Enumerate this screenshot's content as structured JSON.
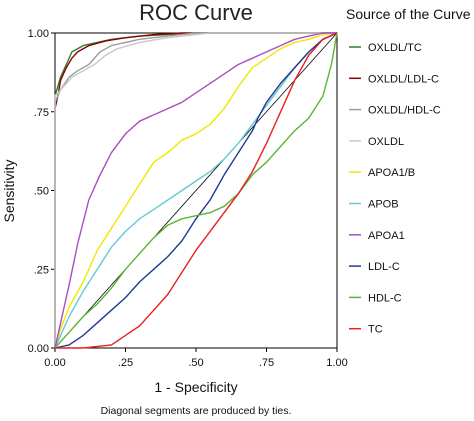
{
  "chart_data": {
    "type": "line",
    "title": "ROC Curve",
    "xlabel": "1 - Specificity",
    "ylabel": "Sensitivity",
    "xlim": [
      0,
      1
    ],
    "ylim": [
      0,
      1
    ],
    "xticks": [
      0,
      0.25,
      0.5,
      0.75,
      1.0
    ],
    "xtick_labels": [
      "0.00",
      ".25",
      ".50",
      ".75",
      "1.00"
    ],
    "yticks": [
      0,
      0.25,
      0.5,
      0.75,
      1.0
    ],
    "ytick_labels": [
      "0.00",
      ".25",
      ".50",
      ".75",
      "1.00"
    ],
    "grid": false,
    "legend_title": "Source of the Curve",
    "legend_position": "right",
    "footnote": "Diagonal segments are produced by ties.",
    "series": [
      {
        "name": "OXLDL/TC",
        "color": "#2e7d32",
        "x": [
          0,
          0,
          0.02,
          0.04,
          0.06,
          0.1,
          0.15,
          0.2,
          0.3,
          0.4,
          0.5,
          0.6,
          1.0
        ],
        "y": [
          0,
          0.8,
          0.86,
          0.9,
          0.94,
          0.96,
          0.97,
          0.98,
          0.99,
          0.995,
          1.0,
          1.0,
          1.0
        ]
      },
      {
        "name": "OXLDL/LDL-C",
        "color": "#8b0000",
        "x": [
          0,
          0,
          0.01,
          0.02,
          0.04,
          0.06,
          0.08,
          0.12,
          0.18,
          0.25,
          0.35,
          0.45,
          1.0
        ],
        "y": [
          0,
          0.76,
          0.8,
          0.85,
          0.89,
          0.92,
          0.94,
          0.96,
          0.975,
          0.985,
          0.995,
          1.0,
          1.0
        ]
      },
      {
        "name": "OXLDL/HDL-C",
        "color": "#9e9e9e",
        "x": [
          0,
          0,
          0.02,
          0.05,
          0.08,
          0.12,
          0.16,
          0.2,
          0.3,
          0.4,
          0.5,
          1.0
        ],
        "y": [
          0,
          0.78,
          0.82,
          0.86,
          0.88,
          0.9,
          0.94,
          0.96,
          0.98,
          0.99,
          1.0,
          1.0
        ]
      },
      {
        "name": "OXLDL",
        "color": "#c8c8c8",
        "x": [
          0,
          0,
          0.03,
          0.06,
          0.1,
          0.14,
          0.18,
          0.22,
          0.3,
          0.4,
          0.55,
          1.0
        ],
        "y": [
          0,
          0.8,
          0.83,
          0.86,
          0.88,
          0.9,
          0.93,
          0.95,
          0.97,
          0.985,
          1.0,
          1.0
        ]
      },
      {
        "name": "APOA1/B",
        "color": "#f2e600",
        "x": [
          0,
          0.02,
          0.05,
          0.1,
          0.15,
          0.2,
          0.25,
          0.3,
          0.35,
          0.4,
          0.45,
          0.5,
          0.55,
          0.6,
          0.65,
          0.7,
          0.75,
          0.8,
          0.85,
          0.9,
          0.95,
          1.0
        ],
        "y": [
          0,
          0.06,
          0.13,
          0.21,
          0.31,
          0.38,
          0.45,
          0.52,
          0.59,
          0.62,
          0.66,
          0.68,
          0.71,
          0.76,
          0.83,
          0.89,
          0.92,
          0.95,
          0.97,
          0.98,
          0.995,
          1.0
        ]
      },
      {
        "name": "APOB",
        "color": "#66c8d6",
        "x": [
          0,
          0.05,
          0.1,
          0.15,
          0.2,
          0.25,
          0.3,
          0.35,
          0.4,
          0.45,
          0.5,
          0.55,
          0.6,
          0.65,
          0.7,
          0.75,
          0.8,
          0.85,
          0.9,
          0.95,
          1.0
        ],
        "y": [
          0,
          0.1,
          0.18,
          0.25,
          0.32,
          0.37,
          0.41,
          0.44,
          0.47,
          0.5,
          0.53,
          0.56,
          0.6,
          0.65,
          0.71,
          0.77,
          0.83,
          0.89,
          0.94,
          0.98,
          1.0
        ]
      },
      {
        "name": "APOA1",
        "color": "#a54fc4",
        "x": [
          0,
          0.02,
          0.05,
          0.08,
          0.12,
          0.16,
          0.2,
          0.25,
          0.3,
          0.35,
          0.4,
          0.45,
          0.5,
          0.55,
          0.6,
          0.65,
          0.7,
          0.75,
          0.8,
          0.85,
          0.9,
          0.95,
          1.0
        ],
        "y": [
          0,
          0.08,
          0.2,
          0.33,
          0.47,
          0.55,
          0.62,
          0.68,
          0.72,
          0.74,
          0.76,
          0.78,
          0.81,
          0.84,
          0.87,
          0.9,
          0.92,
          0.94,
          0.96,
          0.98,
          0.99,
          1.0,
          1.0
        ]
      },
      {
        "name": "LDL-C",
        "color": "#1f3a93",
        "x": [
          0,
          0.05,
          0.1,
          0.15,
          0.2,
          0.25,
          0.3,
          0.35,
          0.4,
          0.45,
          0.5,
          0.55,
          0.6,
          0.65,
          0.7,
          0.72,
          0.75,
          0.8,
          0.85,
          0.9,
          0.95,
          1.0
        ],
        "y": [
          0,
          0.01,
          0.04,
          0.08,
          0.12,
          0.16,
          0.21,
          0.25,
          0.29,
          0.34,
          0.41,
          0.47,
          0.55,
          0.62,
          0.69,
          0.73,
          0.78,
          0.84,
          0.89,
          0.94,
          0.98,
          1.0
        ]
      },
      {
        "name": "HDL-C",
        "color": "#5bb531",
        "x": [
          0,
          0.02,
          0.05,
          0.1,
          0.15,
          0.2,
          0.25,
          0.3,
          0.35,
          0.4,
          0.45,
          0.5,
          0.55,
          0.6,
          0.65,
          0.7,
          0.75,
          0.8,
          0.85,
          0.9,
          0.95,
          0.98,
          1.0
        ],
        "y": [
          0,
          0.02,
          0.05,
          0.1,
          0.14,
          0.19,
          0.25,
          0.3,
          0.35,
          0.39,
          0.41,
          0.42,
          0.43,
          0.45,
          0.49,
          0.55,
          0.59,
          0.64,
          0.69,
          0.73,
          0.8,
          0.9,
          1.0
        ]
      },
      {
        "name": "TC",
        "color": "#e82020",
        "x": [
          0,
          0.1,
          0.2,
          0.25,
          0.3,
          0.35,
          0.4,
          0.45,
          0.5,
          0.55,
          0.6,
          0.65,
          0.7,
          0.75,
          0.8,
          0.85,
          0.9,
          0.95,
          1.0
        ],
        "y": [
          0,
          0.0,
          0.01,
          0.04,
          0.07,
          0.12,
          0.17,
          0.24,
          0.31,
          0.37,
          0.43,
          0.49,
          0.56,
          0.65,
          0.75,
          0.85,
          0.93,
          0.98,
          1.0
        ]
      }
    ]
  }
}
